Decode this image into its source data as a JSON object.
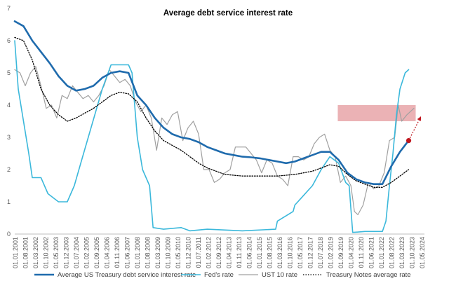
{
  "chart_data": {
    "type": "line",
    "title": "Average debt service interest rate",
    "xlabel": "",
    "ylabel": "",
    "ylim": [
      0,
      7
    ],
    "yticks": [
      0,
      1,
      2,
      3,
      4,
      5,
      6,
      7
    ],
    "grid": false,
    "legend_position": "bottom",
    "x_ticks": [
      "01.01.2001",
      "01.08.2001",
      "01.03.2002",
      "01.10.2002",
      "01.05.2003",
      "01.12.2003",
      "01.07.2004",
      "01.02.2005",
      "01.09.2005",
      "01.04.2006",
      "01.11.2006",
      "01.06.2007",
      "01.01.2008",
      "01.08.2008",
      "01.03.2009",
      "01.10.2009",
      "01.05.2010",
      "01.12.2010",
      "01.07.2011",
      "01.02.2012",
      "01.09.2012",
      "01.04.2013",
      "01.11.2013",
      "01.06.2014",
      "01.01.2015",
      "01.08.2015",
      "01.03.2016",
      "01.10.2016",
      "01.05.2017",
      "01.12.2017",
      "01.07.2018",
      "01.02.2019",
      "01.09.2019",
      "01.04.2020",
      "01.11.2020",
      "01.06.2021",
      "01.01.2022",
      "01.08.2022",
      "01.03.2023",
      "01.10.2023",
      "01.05.2024"
    ],
    "series": [
      {
        "name": "Average US Treasury debt service interest rate",
        "color": "#1f6bad",
        "style": "solid-thick",
        "x": [
          2001.0,
          2001.5,
          2002.0,
          2002.5,
          2003.0,
          2003.5,
          2004.0,
          2004.5,
          2005.0,
          2005.5,
          2006.0,
          2006.5,
          2007.0,
          2007.5,
          2008.0,
          2008.5,
          2009.0,
          2009.5,
          2010.0,
          2010.5,
          2011.0,
          2011.5,
          2012.0,
          2012.5,
          2013.0,
          2013.5,
          2014.0,
          2014.5,
          2015.0,
          2015.5,
          2016.0,
          2016.5,
          2017.0,
          2017.5,
          2018.0,
          2018.5,
          2019.0,
          2019.5,
          2020.0,
          2020.5,
          2021.0,
          2021.5,
          2022.0,
          2022.5,
          2023.0,
          2023.5
        ],
        "values": [
          6.6,
          6.45,
          6.0,
          5.65,
          5.3,
          4.9,
          4.6,
          4.45,
          4.5,
          4.6,
          4.85,
          5.0,
          5.05,
          5.0,
          4.3,
          4.0,
          3.6,
          3.3,
          3.1,
          3.0,
          2.95,
          2.85,
          2.7,
          2.6,
          2.5,
          2.45,
          2.4,
          2.38,
          2.35,
          2.3,
          2.25,
          2.2,
          2.25,
          2.35,
          2.45,
          2.55,
          2.55,
          2.3,
          1.9,
          1.7,
          1.6,
          1.55,
          1.55,
          2.1,
          2.55,
          2.9
        ]
      },
      {
        "name": "Fed's rate",
        "color": "#3bb8db",
        "style": "solid",
        "x": [
          2001.0,
          2001.2,
          2001.5,
          2001.8,
          2002.0,
          2002.5,
          2002.9,
          2003.5,
          2004.0,
          2004.4,
          2004.8,
          2005.2,
          2005.6,
          2006.0,
          2006.5,
          2007.0,
          2007.5,
          2007.7,
          2008.0,
          2008.3,
          2008.7,
          2008.9,
          2009.5,
          2010.5,
          2011.0,
          2012.0,
          2014.0,
          2015.9,
          2016.0,
          2016.9,
          2017.0,
          2017.5,
          2018.0,
          2018.5,
          2019.0,
          2019.5,
          2019.9,
          2020.1,
          2020.3,
          2021.0,
          2022.0,
          2022.2,
          2022.4,
          2022.6,
          2022.8,
          2023.0,
          2023.3,
          2023.5
        ],
        "values": [
          6.0,
          4.5,
          3.5,
          2.5,
          1.75,
          1.75,
          1.25,
          1.0,
          1.0,
          1.5,
          2.25,
          3.0,
          3.75,
          4.5,
          5.25,
          5.25,
          5.25,
          5.0,
          3.0,
          2.0,
          1.5,
          0.2,
          0.15,
          0.2,
          0.1,
          0.15,
          0.1,
          0.15,
          0.4,
          0.7,
          0.9,
          1.2,
          1.5,
          2.0,
          2.4,
          2.2,
          1.6,
          1.5,
          0.05,
          0.08,
          0.08,
          0.4,
          1.5,
          2.5,
          3.7,
          4.5,
          5.0,
          5.1
        ]
      },
      {
        "name": "UST 10 rate",
        "color": "#a0a0a0",
        "style": "solid-thin",
        "x": [
          2001.0,
          2001.3,
          2001.6,
          2001.9,
          2002.2,
          2002.5,
          2002.8,
          2003.1,
          2003.4,
          2003.7,
          2004.0,
          2004.3,
          2004.6,
          2004.9,
          2005.2,
          2005.5,
          2005.8,
          2006.1,
          2006.4,
          2006.7,
          2007.0,
          2007.3,
          2007.6,
          2007.9,
          2008.2,
          2008.5,
          2008.8,
          2009.1,
          2009.4,
          2009.7,
          2010.0,
          2010.3,
          2010.6,
          2010.9,
          2011.2,
          2011.5,
          2011.8,
          2012.1,
          2012.4,
          2012.7,
          2013.0,
          2013.3,
          2013.6,
          2013.9,
          2014.2,
          2014.5,
          2014.8,
          2015.1,
          2015.4,
          2015.7,
          2016.0,
          2016.3,
          2016.6,
          2016.9,
          2017.2,
          2017.5,
          2017.8,
          2018.1,
          2018.4,
          2018.7,
          2019.0,
          2019.3,
          2019.6,
          2019.9,
          2020.2,
          2020.4,
          2020.6,
          2020.9,
          2021.2,
          2021.5,
          2021.8,
          2022.1,
          2022.4,
          2022.7,
          2022.9,
          2023.1,
          2023.4,
          2023.6,
          2023.8
        ],
        "values": [
          5.1,
          5.0,
          4.6,
          5.0,
          5.2,
          4.6,
          3.9,
          4.0,
          3.6,
          4.3,
          4.2,
          4.6,
          4.4,
          4.2,
          4.3,
          4.1,
          4.3,
          4.6,
          5.1,
          4.9,
          4.7,
          4.8,
          4.6,
          4.1,
          3.8,
          4.0,
          3.6,
          2.6,
          3.6,
          3.4,
          3.7,
          3.8,
          2.9,
          3.3,
          3.5,
          3.1,
          2.0,
          2.0,
          1.6,
          1.7,
          1.9,
          2.0,
          2.7,
          2.7,
          2.7,
          2.5,
          2.3,
          1.9,
          2.3,
          2.2,
          1.8,
          1.7,
          1.5,
          2.4,
          2.4,
          2.3,
          2.4,
          2.8,
          3.0,
          3.1,
          2.6,
          2.4,
          1.6,
          1.8,
          1.5,
          0.7,
          0.6,
          0.9,
          1.6,
          1.4,
          1.5,
          1.9,
          2.9,
          3.0,
          4.0,
          3.5,
          3.7,
          3.8,
          3.9
        ]
      },
      {
        "name": "Treasury Notes average rate",
        "color": "#000000",
        "style": "dotted",
        "x": [
          2001.0,
          2001.5,
          2002.0,
          2002.5,
          2003.0,
          2003.5,
          2004.0,
          2004.5,
          2005.0,
          2005.5,
          2006.0,
          2006.5,
          2007.0,
          2007.5,
          2008.0,
          2008.5,
          2009.0,
          2009.5,
          2010.0,
          2010.5,
          2011.0,
          2011.5,
          2012.0,
          2013.0,
          2014.0,
          2015.0,
          2016.0,
          2017.0,
          2018.0,
          2018.5,
          2019.0,
          2019.5,
          2020.0,
          2020.5,
          2021.0,
          2021.5,
          2022.0,
          2022.5,
          2023.0,
          2023.5
        ],
        "values": [
          6.1,
          6.0,
          5.4,
          4.5,
          4.0,
          3.7,
          3.5,
          3.6,
          3.75,
          3.9,
          4.1,
          4.3,
          4.4,
          4.35,
          4.1,
          3.6,
          3.2,
          2.9,
          2.75,
          2.6,
          2.4,
          2.2,
          2.05,
          1.85,
          1.8,
          1.8,
          1.8,
          1.85,
          1.95,
          2.05,
          2.15,
          2.1,
          1.85,
          1.65,
          1.55,
          1.45,
          1.45,
          1.6,
          1.8,
          2.0
        ]
      }
    ],
    "annotations": [
      {
        "type": "band",
        "color": "#e8a4a8",
        "x_range": [
          2019.45,
          2023.9
        ],
        "y_range": [
          3.5,
          4.0
        ]
      },
      {
        "type": "point",
        "color": "#c0161e",
        "x": 2023.5,
        "y": 2.9
      },
      {
        "type": "arrow",
        "style": "dotted",
        "color": "#c0161e",
        "from": [
          2023.5,
          2.9
        ],
        "to": [
          2024.2,
          3.65
        ]
      }
    ]
  }
}
